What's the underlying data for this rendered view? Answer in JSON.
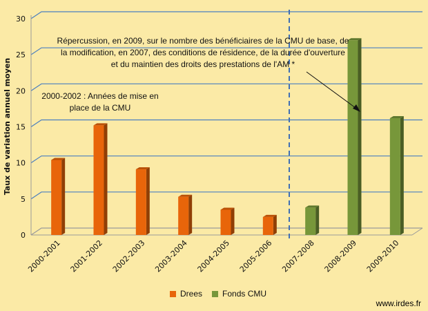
{
  "chart_data": {
    "type": "bar",
    "ylabel": "Taux de variation annuel moyen",
    "xlabel": "",
    "ylim": [
      0,
      30
    ],
    "yticks": [
      0,
      5,
      10,
      15,
      20,
      25,
      30
    ],
    "grid": true,
    "legend_position": "bottom",
    "categories": [
      "2000-2001",
      "2001-2002",
      "2002-2003",
      "2003-2004",
      "2004-2005",
      "2005-2006",
      "2007-2008",
      "2008-2009",
      "2009-2010"
    ],
    "series": [
      {
        "name": "Drees",
        "color": "#e8650a",
        "values": [
          10.4,
          15.2,
          9.1,
          5.3,
          3.5,
          2.5,
          null,
          null,
          null
        ]
      },
      {
        "name": "Fonds CMU",
        "color": "#77973a",
        "values": [
          null,
          null,
          null,
          null,
          null,
          null,
          3.8,
          27.0,
          16.2
        ]
      }
    ],
    "annotations": [
      "Répercussion, en 2009, sur le nombre des bénéficiaires de la CMU de base, de la modification,  en 2007, des conditions de résidence, de la durée d'ouverture et du maintien des droits des prestations de l'AM *",
      "2000-2002 : Années de mise en place de la CMU"
    ]
  },
  "watermark": "www.irdes.fr",
  "colors": {
    "background": "#fbeaa6",
    "gridline": "#4a7fc0",
    "divider": "#3f6fb5"
  }
}
